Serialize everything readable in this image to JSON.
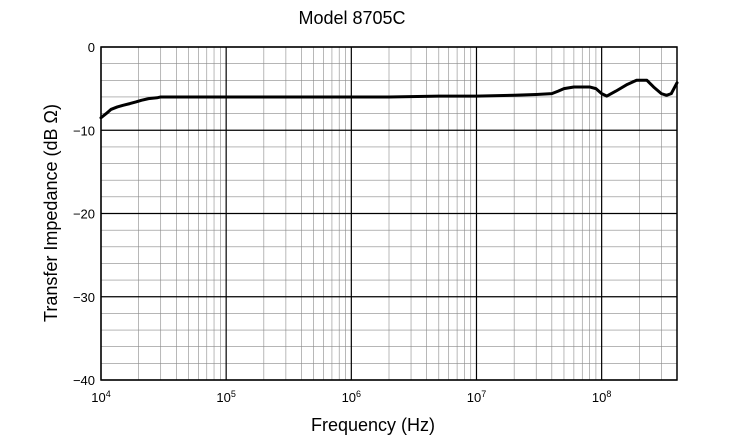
{
  "chart_data": {
    "type": "line",
    "title": "Model 8705C",
    "xlabel": "Frequency (Hz)",
    "ylabel": "Transfer Impedance (dB Ω)",
    "x_scale": "log",
    "xlim": [
      10000,
      400000000
    ],
    "ylim": [
      -40,
      0
    ],
    "grid": true,
    "x_ticks": [
      {
        "value": 10000,
        "base": "10",
        "exp": "4"
      },
      {
        "value": 100000,
        "base": "10",
        "exp": "5"
      },
      {
        "value": 1000000,
        "base": "10",
        "exp": "6"
      },
      {
        "value": 10000000,
        "base": "10",
        "exp": "7"
      },
      {
        "value": 100000000,
        "base": "10",
        "exp": "8"
      }
    ],
    "y_ticks": [
      {
        "value": 0,
        "label": "0"
      },
      {
        "value": -10,
        "label": "−10"
      },
      {
        "value": -20,
        "label": "−20"
      },
      {
        "value": -30,
        "label": "−30"
      },
      {
        "value": -40,
        "label": "−40"
      }
    ],
    "series": [
      {
        "color": "#000000",
        "x": [
          10000,
          11000,
          12000,
          13500,
          15000,
          17000,
          19000,
          21000,
          24000,
          28000,
          30000,
          35000,
          50000,
          100000,
          200000,
          500000,
          1000000,
          2000000,
          5000000,
          10000000,
          20000000,
          30000000,
          40000000,
          45000000,
          50000000,
          60000000,
          70000000,
          80000000,
          90000000,
          100000000,
          110000000,
          130000000,
          160000000,
          190000000,
          230000000,
          260000000,
          300000000,
          330000000,
          360000000,
          400000000
        ],
        "y": [
          -8.5,
          -8.0,
          -7.5,
          -7.2,
          -7.0,
          -6.8,
          -6.6,
          -6.4,
          -6.2,
          -6.1,
          -6.0,
          -6.0,
          -6.0,
          -6.0,
          -6.0,
          -6.0,
          -6.0,
          -6.0,
          -5.9,
          -5.9,
          -5.8,
          -5.7,
          -5.6,
          -5.3,
          -5.0,
          -4.8,
          -4.8,
          -4.8,
          -5.0,
          -5.6,
          -5.9,
          -5.3,
          -4.5,
          -4.0,
          -4.0,
          -4.8,
          -5.6,
          -5.8,
          -5.6,
          -4.3
        ]
      }
    ]
  }
}
